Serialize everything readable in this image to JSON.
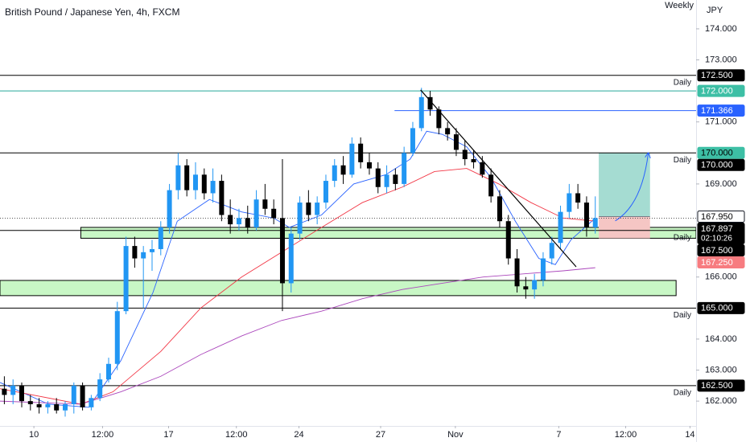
{
  "chart_data": {
    "type": "candlestick",
    "title": "British Pound / Japanese Yen, 4h, FXCM",
    "interval": "Weekly",
    "currency": "JPY",
    "up_color": "#2196f3",
    "down_color": "#000000",
    "xlim": [
      0,
      80.1
    ],
    "ylim": [
      161.2,
      174.93
    ],
    "xticks": [
      {
        "value": 3.9,
        "label": "10"
      },
      {
        "value": 11.8,
        "label": "12:00"
      },
      {
        "value": 19.4,
        "label": "17"
      },
      {
        "value": 27.2,
        "label": "12:00"
      },
      {
        "value": 34.4,
        "label": "24"
      },
      {
        "value": 43.8,
        "label": "27"
      },
      {
        "value": 52.4,
        "label": "Nov"
      },
      {
        "value": 64.3,
        "label": "7"
      },
      {
        "value": 72,
        "label": "12:00"
      },
      {
        "value": 79.4,
        "label": "14"
      }
    ],
    "yticks": [
      {
        "value": 174,
        "label": "174.000"
      },
      {
        "value": 173,
        "label": "173.000"
      },
      {
        "value": 171,
        "label": "171.000"
      },
      {
        "value": 169,
        "label": "169.000"
      },
      {
        "value": 166,
        "label": "166.000"
      },
      {
        "value": 164,
        "label": "164.000"
      },
      {
        "value": 163,
        "label": "163.000"
      },
      {
        "value": 162,
        "label": "162.000"
      }
    ],
    "x": [
      0.5,
      1.5,
      2.5,
      3.5,
      4.5,
      5.5,
      6.5,
      7.5,
      8.5,
      9.5,
      10.5,
      11.5,
      12.5,
      13.5,
      14.5,
      15.5,
      16.5,
      17.5,
      18.5,
      19.5,
      20.5,
      21.5,
      22.5,
      23.5,
      24.5,
      25.5,
      26.5,
      27.5,
      28.5,
      29.5,
      30.5,
      31.5,
      32.5,
      33.5,
      34.5,
      35.5,
      36.5,
      37.5,
      38.5,
      39.5,
      40.5,
      41.5,
      42.5,
      43.5,
      44.5,
      45.5,
      46.5,
      47.5,
      48.5,
      49.5,
      50.5,
      51.5,
      52.5,
      53.5,
      54.5,
      55.5,
      56.5,
      57.5,
      58.5,
      59.5,
      60.5,
      61.5,
      62.5,
      63.5,
      64.5,
      65.5,
      66.5,
      67.5,
      68.5
    ],
    "open": [
      162.4,
      162.2,
      162.5,
      162.0,
      161.9,
      161.8,
      161.9,
      161.7,
      161.9,
      162.5,
      161.8,
      162.1,
      162.7,
      163.2,
      164.9,
      167.0,
      166.6,
      166.8,
      166.9,
      167.6,
      168.8,
      169.6,
      168.8,
      169.3,
      168.7,
      169.1,
      168.0,
      167.7,
      167.9,
      167.6,
      168.5,
      168.2,
      167.9,
      165.8,
      167.4,
      168.4,
      168.0,
      168.4,
      169.1,
      169.6,
      169.3,
      170.3,
      169.7,
      169.5,
      168.9,
      169.3,
      169.0,
      170.0,
      170.8,
      171.8,
      171.4,
      170.8,
      170.6,
      170.1,
      169.8,
      169.7,
      169.3,
      168.6,
      167.8,
      166.6,
      165.7,
      165.6,
      165.9,
      166.6,
      167.1,
      168.1,
      168.7,
      168.4,
      167.6
    ],
    "high": [
      162.8,
      162.7,
      162.6,
      162.2,
      162.1,
      162.0,
      162.1,
      162.0,
      162.6,
      162.6,
      162.2,
      162.9,
      163.4,
      165.2,
      167.3,
      167.3,
      167.0,
      167.2,
      167.8,
      169.0,
      170.0,
      169.8,
      169.7,
      169.5,
      169.5,
      169.3,
      168.5,
      168.2,
      168.3,
      168.8,
      169.0,
      168.5,
      169.8,
      167.6,
      168.6,
      168.8,
      168.6,
      169.3,
      169.8,
      169.9,
      170.5,
      170.5,
      170.0,
      169.7,
      169.6,
      169.5,
      170.2,
      171.0,
      172.1,
      172.0,
      171.5,
      171.0,
      170.8,
      170.4,
      170.1,
      169.9,
      169.5,
      168.8,
      168.0,
      166.9,
      166.0,
      166.1,
      166.8,
      167.3,
      168.3,
      169.0,
      169.0,
      168.6,
      168.6
    ],
    "low": [
      161.9,
      161.9,
      161.8,
      161.7,
      161.6,
      161.6,
      161.6,
      161.5,
      161.6,
      161.7,
      161.7,
      162.0,
      162.6,
      163.0,
      164.8,
      166.3,
      165.0,
      166.2,
      166.7,
      167.4,
      168.5,
      168.6,
      168.5,
      168.5,
      168.4,
      167.8,
      167.4,
      167.5,
      167.4,
      167.5,
      168.0,
      167.7,
      164.9,
      165.5,
      167.2,
      167.8,
      167.7,
      168.2,
      168.9,
      169.0,
      169.2,
      169.5,
      169.3,
      168.7,
      168.7,
      168.8,
      168.9,
      169.9,
      170.7,
      171.2,
      170.6,
      170.4,
      169.9,
      169.6,
      169.5,
      169.2,
      168.4,
      167.6,
      166.4,
      165.5,
      165.3,
      165.3,
      165.7,
      166.4,
      166.9,
      167.9,
      168.2,
      167.3,
      167.4
    ],
    "close": [
      162.2,
      162.5,
      162.0,
      161.9,
      161.8,
      161.9,
      161.7,
      161.9,
      162.5,
      161.8,
      162.1,
      162.7,
      163.2,
      164.9,
      167.0,
      166.6,
      166.8,
      166.9,
      167.6,
      168.8,
      169.6,
      168.8,
      169.3,
      168.7,
      169.1,
      168.0,
      167.7,
      167.9,
      167.6,
      168.5,
      168.2,
      167.9,
      165.8,
      167.4,
      168.4,
      168.0,
      168.4,
      169.1,
      169.6,
      169.3,
      170.3,
      169.7,
      169.5,
      168.9,
      169.3,
      169.0,
      170.0,
      170.8,
      171.8,
      171.4,
      170.8,
      170.6,
      170.1,
      169.8,
      169.7,
      169.3,
      168.6,
      167.8,
      166.6,
      165.7,
      165.6,
      165.9,
      166.6,
      167.1,
      168.1,
      168.7,
      168.4,
      167.6,
      167.9
    ],
    "series": [
      {
        "color": "#2962ff",
        "x": [
          0,
          5.6,
          10.2,
          13.9,
          17.6,
          20.4,
          24.1,
          27.8,
          31.5,
          33.3,
          37,
          40.7,
          44.4,
          47.2,
          49.1,
          50.9,
          53.7,
          56.5,
          59.3,
          62,
          63.9,
          65.7,
          68.5
        ],
        "values": [
          162.6,
          161.9,
          161.8,
          163.3,
          165.5,
          167.8,
          168.5,
          168.1,
          167.9,
          167.6,
          168.0,
          169.0,
          169.3,
          169.8,
          170.7,
          170.6,
          170.2,
          169.2,
          167.8,
          166.6,
          166.4,
          167.2,
          167.9
        ]
      },
      {
        "color": "#f23645",
        "x": [
          0,
          9.3,
          13,
          18.5,
          23.1,
          27.8,
          32.4,
          37,
          41.7,
          46.3,
          50,
          53.7,
          57.4,
          61.1,
          64.8,
          68.5
        ],
        "values": [
          162.4,
          161.9,
          162.3,
          163.6,
          165.0,
          166.0,
          166.8,
          167.6,
          168.4,
          168.9,
          169.4,
          169.5,
          169.0,
          168.4,
          167.9,
          167.8
        ]
      },
      {
        "color": "#ab47bc",
        "x": [
          0,
          9.3,
          13.9,
          18.5,
          23.1,
          27.8,
          32.4,
          37,
          41.7,
          46.3,
          50.9,
          55.6,
          60.2,
          64.8,
          68.5
        ],
        "values": [
          162.0,
          161.9,
          162.3,
          162.8,
          163.5,
          164.1,
          164.6,
          164.9,
          165.3,
          165.6,
          165.8,
          166.0,
          166.1,
          166.2,
          166.3
        ]
      }
    ],
    "levels": [
      {
        "value": 172.5,
        "label": "Daily",
        "color": "#000000",
        "x_start": 0
      },
      {
        "value": 172.0,
        "color": "#26a69a",
        "x_start": 0
      },
      {
        "value": 171.366,
        "color": "#2962ff",
        "x_start": 45.4
      },
      {
        "value": 170.0,
        "label": "Daily",
        "color": "#000000",
        "x_start": 0
      },
      {
        "value": 167.5,
        "label": "Daily",
        "color": "#000000",
        "x_start": 0
      },
      {
        "value": 165.0,
        "label": "Daily",
        "color": "#000000",
        "x_start": 0
      },
      {
        "value": 162.5,
        "label": "Daily",
        "color": "#000000",
        "x_start": 0
      }
    ],
    "current_price": 167.897,
    "zones": [
      {
        "x": [
          9.3,
          80.1
        ],
        "y": [
          167.25,
          167.6
        ],
        "color": "#c8f7c5"
      },
      {
        "x": [
          0,
          77.8
        ],
        "y": [
          165.4,
          165.89
        ],
        "color": "#c8f7c5"
      }
    ],
    "position": {
      "x": [
        68.9,
        74.8
      ],
      "entry": 167.95,
      "target": 170.0,
      "stop": 167.25,
      "profit_color": "#a5dcd2",
      "loss_color": "#f5c6c4"
    },
    "trendline": {
      "x": [
        48.4,
        66.3
      ],
      "y": [
        172.03,
        166.33
      ],
      "color": "#000000"
    },
    "arrow": {
      "x": [
        70.8,
        74.6
      ],
      "y": [
        167.81,
        170.0
      ],
      "color": "#2962ff"
    },
    "price_tags": [
      {
        "value": 172.5,
        "label": "172.500",
        "bg": "#000000",
        "fg": "#ffffff"
      },
      {
        "value": 172.0,
        "label": "172.000",
        "bg": "#3dbfa5",
        "fg": "#ffffff"
      },
      {
        "value": 171.366,
        "label": "171.366",
        "bg": "#2962ff",
        "fg": "#ffffff"
      },
      {
        "value": 170.0,
        "label": "170.000",
        "bg": "#3dbfa5",
        "fg": "#000000"
      },
      {
        "value": 170.0,
        "label": "170.000",
        "bg": "#000000",
        "fg": "#ffffff"
      },
      {
        "value": 167.95,
        "label": "167.950",
        "bg": "#ffffff",
        "fg": "#000000"
      },
      {
        "value": 167.897,
        "label": "167.897",
        "bg": "#000000",
        "fg": "#ffffff",
        "countdown": "02:10:26"
      },
      {
        "value": 167.5,
        "label": "167.500",
        "bg": "#000000",
        "fg": "#ffffff"
      },
      {
        "value": 167.25,
        "label": "167.250",
        "bg": "#f77c80",
        "fg": "#ffffff"
      },
      {
        "value": 165.0,
        "label": "165.000",
        "bg": "#000000",
        "fg": "#ffffff"
      },
      {
        "value": 162.5,
        "label": "162.500",
        "bg": "#000000",
        "fg": "#ffffff"
      }
    ]
  }
}
